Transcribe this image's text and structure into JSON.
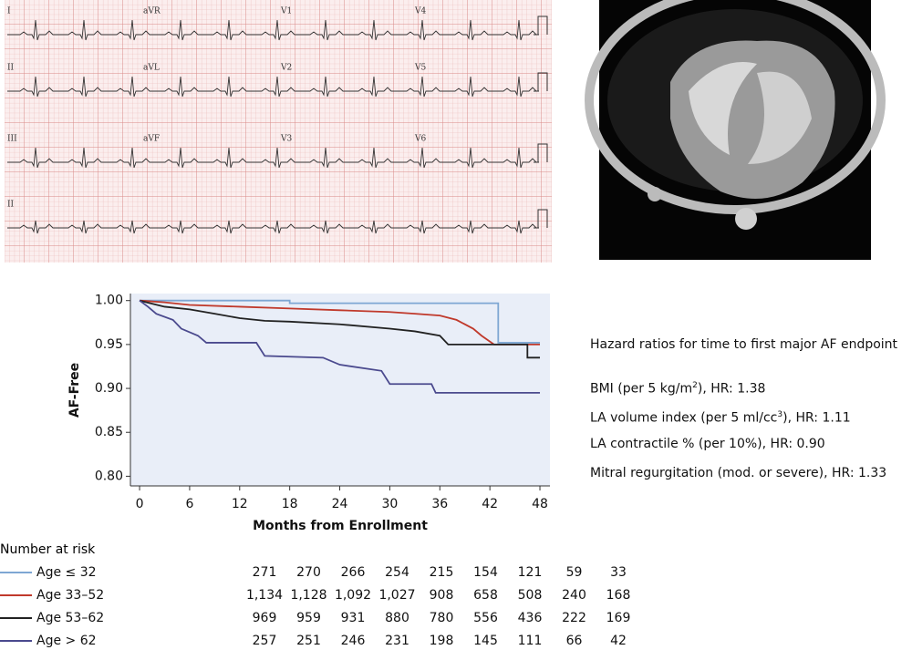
{
  "ecg": {
    "leads": [
      [
        "I",
        "aVR",
        "V1",
        "V4"
      ],
      [
        "II",
        "aVL",
        "V2",
        "V5"
      ],
      [
        "III",
        "aVF",
        "V3",
        "V6"
      ],
      [
        "II"
      ]
    ]
  },
  "chart_data": {
    "type": "line",
    "y_label": "AF-Free",
    "x_label": "Months from Enrollment",
    "xlim": [
      -1.1,
      49.2
    ],
    "ylim": [
      0.789,
      1.008
    ],
    "xticks": [
      0,
      6,
      12,
      18,
      24,
      30,
      36,
      42,
      48
    ],
    "yticks": [
      {
        "value": 1.0,
        "label": "1.00"
      },
      {
        "value": 0.95,
        "label": "0.95"
      },
      {
        "value": 0.9,
        "label": "0.90"
      },
      {
        "value": 0.85,
        "label": "0.85"
      },
      {
        "value": 0.8,
        "label": "0.80"
      }
    ],
    "background": "#e9eef8",
    "series": [
      {
        "name": "Age ≤ 32",
        "color": "#7ea7d3",
        "x": [
          0,
          18,
          18,
          43,
          43,
          48
        ],
        "values": [
          1.0,
          1.0,
          0.997,
          0.997,
          0.952,
          0.952
        ]
      },
      {
        "name": "Age 33–52",
        "color": "#c0392b",
        "x": [
          0,
          3,
          6,
          12,
          18,
          24,
          30,
          33,
          36,
          38,
          40,
          41,
          42.5,
          48
        ],
        "values": [
          1.0,
          0.998,
          0.995,
          0.993,
          0.991,
          0.989,
          0.987,
          0.985,
          0.983,
          0.978,
          0.968,
          0.96,
          0.95,
          0.95
        ]
      },
      {
        "name": "Age 53–62",
        "color": "#222222",
        "x": [
          0,
          3,
          6,
          9,
          12,
          15,
          18,
          24,
          30,
          33,
          36,
          37,
          46.5,
          46.5,
          48
        ],
        "values": [
          1.0,
          0.993,
          0.99,
          0.985,
          0.98,
          0.977,
          0.976,
          0.973,
          0.968,
          0.965,
          0.96,
          0.95,
          0.95,
          0.935,
          0.935
        ]
      },
      {
        "name": "Age > 62",
        "color": "#4b4a8e",
        "x": [
          0,
          1,
          2,
          4,
          5,
          7,
          8,
          14,
          15,
          22,
          24,
          29,
          30,
          35,
          35.5,
          48
        ],
        "values": [
          1.0,
          0.993,
          0.985,
          0.978,
          0.968,
          0.96,
          0.952,
          0.952,
          0.937,
          0.935,
          0.927,
          0.92,
          0.905,
          0.905,
          0.895,
          0.895
        ]
      }
    ]
  },
  "hazard_ratios": {
    "title": "Hazard ratios for time to first major AF endpoint",
    "items": [
      {
        "before": "BMI (per 5 kg/m",
        "sup": "2",
        "after": "), HR: 1.38"
      },
      {
        "before": "LA volume index (per 5 ml/cc",
        "sup": "3",
        "after": "), HR: 1.11"
      },
      {
        "before": "LA contractile % (per 10%), HR: 0.90"
      },
      {
        "before": "Mitral regurgitation (mod. or severe), HR: 1.33"
      }
    ]
  },
  "risk_table": {
    "title": "Number at risk",
    "rows": [
      {
        "values": [
          271,
          270,
          266,
          254,
          215,
          154,
          121,
          59,
          33
        ]
      },
      {
        "values": [
          1134,
          1128,
          1092,
          1027,
          908,
          658,
          508,
          240,
          168
        ],
        "value_labels": [
          "1,134",
          "1,128",
          "1,092",
          "1,027",
          "908",
          "658",
          "508",
          "240",
          "168"
        ]
      },
      {
        "values": [
          969,
          959,
          931,
          880,
          780,
          556,
          436,
          222,
          169
        ]
      },
      {
        "values": [
          257,
          251,
          246,
          231,
          198,
          145,
          111,
          66,
          42
        ]
      }
    ]
  }
}
